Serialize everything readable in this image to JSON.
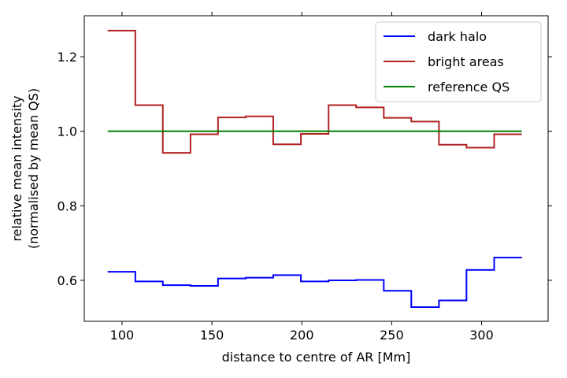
{
  "chart_data": {
    "type": "line",
    "step": "post",
    "xlabel": "distance to centre of AR [Mm]",
    "ylabel_lines": [
      "relative mean intensity",
      "(normalised by mean QS)"
    ],
    "xlim": [
      79,
      337
    ],
    "ylim": [
      0.49,
      1.31
    ],
    "xticks": [
      100,
      150,
      200,
      250,
      300
    ],
    "yticks": [
      0.6,
      0.8,
      1.0,
      1.2
    ],
    "xtick_labels": [
      "100",
      "150",
      "200",
      "250",
      "300"
    ],
    "ytick_labels": [
      "0.6",
      "0.8",
      "1.0",
      "1.2"
    ],
    "legend_position": "top-right",
    "x": [
      92,
      107.4,
      122.7,
      138.1,
      153.4,
      168.8,
      184.1,
      199.5,
      214.9,
      230.2,
      245.6,
      260.9,
      276.3,
      291.6,
      307,
      322.4
    ],
    "series": [
      {
        "name": "dark halo",
        "color": "#0000ff",
        "values": [
          0.623,
          0.597,
          0.587,
          0.585,
          0.605,
          0.607,
          0.614,
          0.597,
          0.6,
          0.601,
          0.572,
          0.528,
          0.546,
          0.628,
          0.661,
          0.661
        ]
      },
      {
        "name": "bright areas",
        "color": "#b22222",
        "values": [
          1.27,
          1.07,
          0.942,
          0.992,
          1.037,
          1.04,
          0.965,
          0.993,
          1.07,
          1.064,
          1.036,
          1.026,
          0.964,
          0.956,
          0.992,
          0.992
        ]
      },
      {
        "name": "reference QS",
        "color": "#008000",
        "values": [
          1.0,
          1.0,
          1.0,
          1.0,
          1.0,
          1.0,
          1.0,
          1.0,
          1.0,
          1.0,
          1.0,
          1.0,
          1.0,
          1.0,
          1.0,
          1.0
        ]
      }
    ]
  }
}
